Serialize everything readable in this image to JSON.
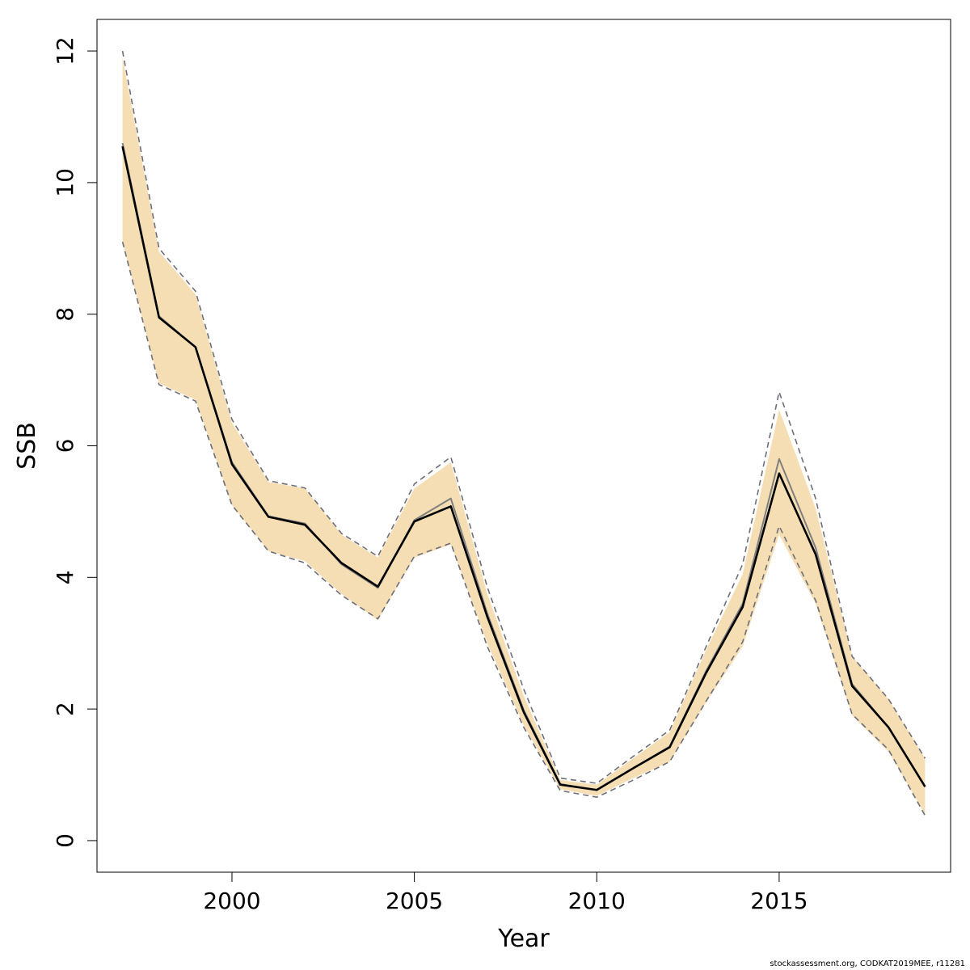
{
  "chart_data": {
    "type": "line",
    "title": "",
    "xlabel": "Year",
    "ylabel": "SSB",
    "xlim": [
      1996.3,
      2019.7
    ],
    "ylim": [
      -0.48,
      12.48
    ],
    "x_ticks": [
      2000,
      2005,
      2010,
      2015
    ],
    "y_ticks": [
      0,
      2,
      4,
      6,
      8,
      10,
      12
    ],
    "grid": false,
    "legend": "none",
    "x": [
      1997,
      1998,
      1999,
      2000,
      2001,
      2002,
      2003,
      2004,
      2005,
      2006,
      2007,
      2008,
      2009,
      2010,
      2011,
      2012,
      2013,
      2014,
      2015,
      2016,
      2017,
      2018,
      2019
    ],
    "band_upper": [
      11.9,
      8.95,
      8.3,
      6.35,
      5.45,
      5.35,
      4.65,
      4.3,
      5.35,
      5.75,
      3.75,
      2.2,
      0.92,
      0.85,
      1.25,
      1.65,
      2.9,
      4.05,
      6.55,
      5.05,
      2.8,
      2.15,
      1.25
    ],
    "band_lower": [
      9.1,
      6.95,
      6.7,
      5.1,
      4.4,
      4.25,
      3.75,
      3.35,
      4.3,
      4.5,
      3.0,
      1.75,
      0.78,
      0.68,
      0.95,
      1.2,
      2.1,
      2.95,
      4.65,
      3.6,
      1.9,
      1.35,
      0.4
    ],
    "series": [
      {
        "style": "solid-black",
        "values": [
          10.55,
          7.95,
          7.5,
          5.72,
          4.92,
          4.8,
          4.22,
          3.86,
          4.85,
          5.08,
          3.4,
          1.95,
          0.85,
          0.77,
          1.1,
          1.42,
          2.55,
          3.55,
          5.58,
          4.35,
          2.35,
          1.72,
          0.82
        ]
      },
      {
        "style": "solid-grey",
        "values": [
          10.6,
          7.97,
          7.5,
          5.75,
          4.93,
          4.82,
          4.2,
          3.84,
          4.87,
          5.2,
          3.45,
          1.98,
          0.86,
          0.77,
          1.1,
          1.43,
          2.58,
          3.6,
          5.8,
          4.45,
          2.38,
          1.72,
          0.82
        ]
      },
      {
        "style": "dashed-upper",
        "values": [
          12.0,
          9.0,
          8.35,
          6.4,
          5.47,
          5.36,
          4.67,
          4.32,
          5.42,
          5.83,
          3.85,
          2.3,
          0.95,
          0.87,
          1.28,
          1.68,
          2.95,
          4.2,
          6.82,
          5.2,
          2.8,
          2.15,
          1.25
        ]
      },
      {
        "style": "dashed-lower",
        "values": [
          9.1,
          6.93,
          6.68,
          5.1,
          4.4,
          4.22,
          3.73,
          3.37,
          4.32,
          4.52,
          2.95,
          1.72,
          0.76,
          0.66,
          0.92,
          1.2,
          2.12,
          3.02,
          4.78,
          3.65,
          1.92,
          1.38,
          0.38
        ]
      }
    ],
    "colors": {
      "band": "#f5deb3",
      "main_line": "#000000",
      "grey_line": "#7f7f7f",
      "dashed_line": "#6e6e7a",
      "frame": "#000000"
    }
  },
  "footer": {
    "credit": "stockassessment.org, CODKAT2019MEE, r11281"
  }
}
